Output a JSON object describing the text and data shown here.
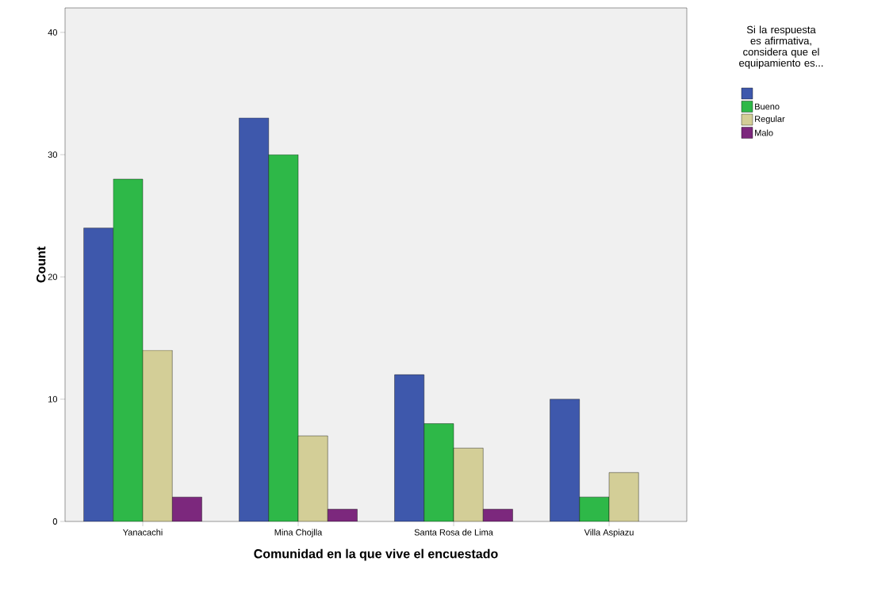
{
  "chart_data": {
    "type": "bar",
    "xlabel": "Comunidad en la que vive el encuestado",
    "ylabel": "Count",
    "legend_title": "Si la respuesta es afirmativa, considera que el equipamiento es...",
    "categories": [
      "Yanacachi",
      "Mina Chojlla",
      "Santa Rosa de Lima",
      "Villa Aspiazu"
    ],
    "series": [
      {
        "color": "#3e58ac",
        "values": [
          24,
          33,
          12,
          10
        ]
      },
      {
        "name": "Bueno",
        "color": "#2eb848",
        "values": [
          28,
          30,
          8,
          2
        ]
      },
      {
        "name": "Regular",
        "color": "#d3ce97",
        "values": [
          14,
          7,
          6,
          4
        ]
      },
      {
        "name": "Malo",
        "color": "#7c287d",
        "values": [
          2,
          1,
          1,
          null
        ]
      }
    ],
    "ylim": [
      0,
      42
    ],
    "yticks": [
      0,
      10,
      20,
      30,
      40
    ],
    "grid": false,
    "legend": "right"
  }
}
